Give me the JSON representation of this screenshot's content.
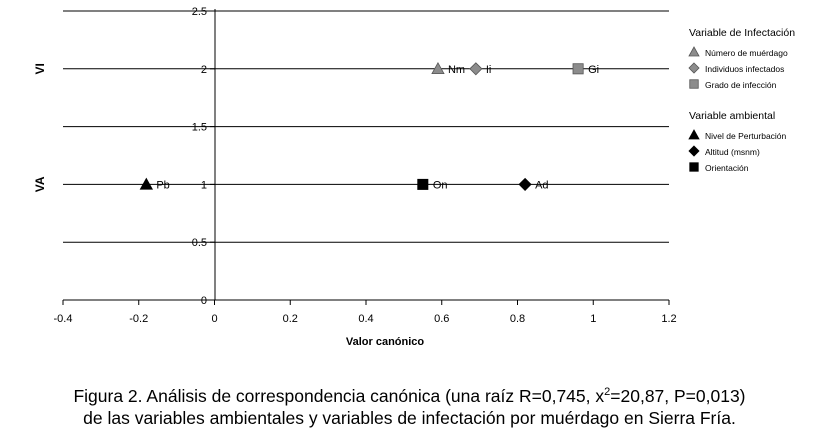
{
  "chart_data": {
    "type": "scatter",
    "xlabel": "Valor canónico",
    "ylabel": "",
    "xlim": [
      -0.4,
      1.2
    ],
    "ylim": [
      0,
      2.5
    ],
    "x_ticks": [
      "-0.4",
      "-0.2",
      "0",
      "0.2",
      "0.4",
      "0.6",
      "0.8",
      "1",
      "1.2"
    ],
    "y_ticks": [
      "0",
      "0.5",
      "1",
      "1.5",
      "2",
      "2.5"
    ],
    "grid": "horizontal",
    "y_category_labels": [
      {
        "label": "VI",
        "y": 2
      },
      {
        "label": "VA",
        "y": 1
      }
    ],
    "legend_position": "right",
    "legend": {
      "groups": [
        {
          "title": "Variable de Infectación",
          "entries": [
            {
              "name": "Número de muérdago",
              "marker": "triangle",
              "color": "#8c8c8c"
            },
            {
              "name": "Individuos infectados",
              "marker": "diamond",
              "color": "#8c8c8c"
            },
            {
              "name": "Grado de infección",
              "marker": "square",
              "color": "#8c8c8c"
            }
          ]
        },
        {
          "title": "Variable ambiental",
          "entries": [
            {
              "name": "Nivel de Perturbación",
              "marker": "triangle",
              "color": "#000000"
            },
            {
              "name": "Altitud (msnm)",
              "marker": "diamond",
              "color": "#000000"
            },
            {
              "name": "Orientación",
              "marker": "square",
              "color": "#000000"
            }
          ]
        }
      ]
    },
    "points": [
      {
        "label": "Nm",
        "x": 0.59,
        "y": 2,
        "marker": "triangle",
        "color": "#8c8c8c"
      },
      {
        "label": "Ii",
        "x": 0.69,
        "y": 2,
        "marker": "diamond",
        "color": "#8c8c8c"
      },
      {
        "label": "Gi",
        "x": 0.96,
        "y": 2,
        "marker": "square",
        "color": "#8c8c8c"
      },
      {
        "label": "Pb",
        "x": -0.18,
        "y": 1,
        "marker": "triangle",
        "color": "#000000"
      },
      {
        "label": "On",
        "x": 0.55,
        "y": 1,
        "marker": "square",
        "color": "#000000"
      },
      {
        "label": "Ad",
        "x": 0.82,
        "y": 1,
        "marker": "diamond",
        "color": "#000000"
      }
    ]
  },
  "caption": {
    "line1_a": "Figura 2. Análisis de correspondencia canónica (una raíz R=0,745, x",
    "line1_sup": "2",
    "line1_b": "=20,87, P=0,013)",
    "line2": "de las variables ambientales y variables de infectación por muérdago en Sierra Fría."
  }
}
